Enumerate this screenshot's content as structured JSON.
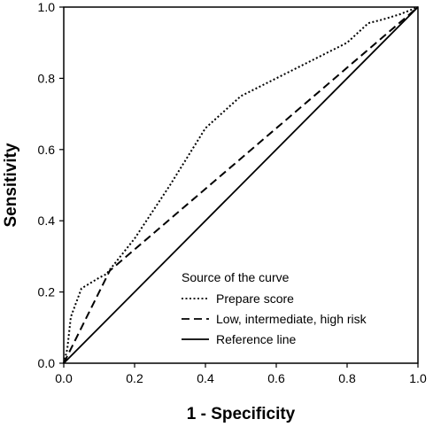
{
  "chart_data": {
    "type": "line",
    "xlabel": "1 - Specificity",
    "ylabel": "Sensitivity",
    "xlim": [
      0,
      1
    ],
    "ylim": [
      0,
      1
    ],
    "x_ticks": [
      "0.0",
      "0.2",
      "0.4",
      "0.6",
      "0.8",
      "1.0"
    ],
    "y_ticks": [
      "0.0",
      "0.2",
      "0.4",
      "0.6",
      "0.8",
      "1.0"
    ],
    "grid": false,
    "legend_position": "bottom-right",
    "legend": {
      "title": "Source of the curve"
    },
    "series": [
      {
        "name": "Prepare score",
        "style": "dotted",
        "points": [
          [
            0,
            0
          ],
          [
            0.01,
            0.04
          ],
          [
            0.02,
            0.13
          ],
          [
            0.05,
            0.21
          ],
          [
            0.1,
            0.24
          ],
          [
            0.12,
            0.25
          ],
          [
            0.2,
            0.35
          ],
          [
            0.3,
            0.5
          ],
          [
            0.4,
            0.66
          ],
          [
            0.5,
            0.75
          ],
          [
            0.6,
            0.8
          ],
          [
            0.7,
            0.85
          ],
          [
            0.8,
            0.9
          ],
          [
            0.86,
            0.955
          ],
          [
            0.9,
            0.965
          ],
          [
            0.95,
            0.98
          ],
          [
            1,
            1
          ]
        ]
      },
      {
        "name": "Low, intermediate, high risk",
        "style": "dashed",
        "points": [
          [
            0,
            0
          ],
          [
            0.13,
            0.26
          ],
          [
            1,
            1
          ]
        ]
      },
      {
        "name": "Reference line",
        "style": "solid",
        "points": [
          [
            0,
            0
          ],
          [
            1,
            1
          ]
        ]
      }
    ]
  }
}
